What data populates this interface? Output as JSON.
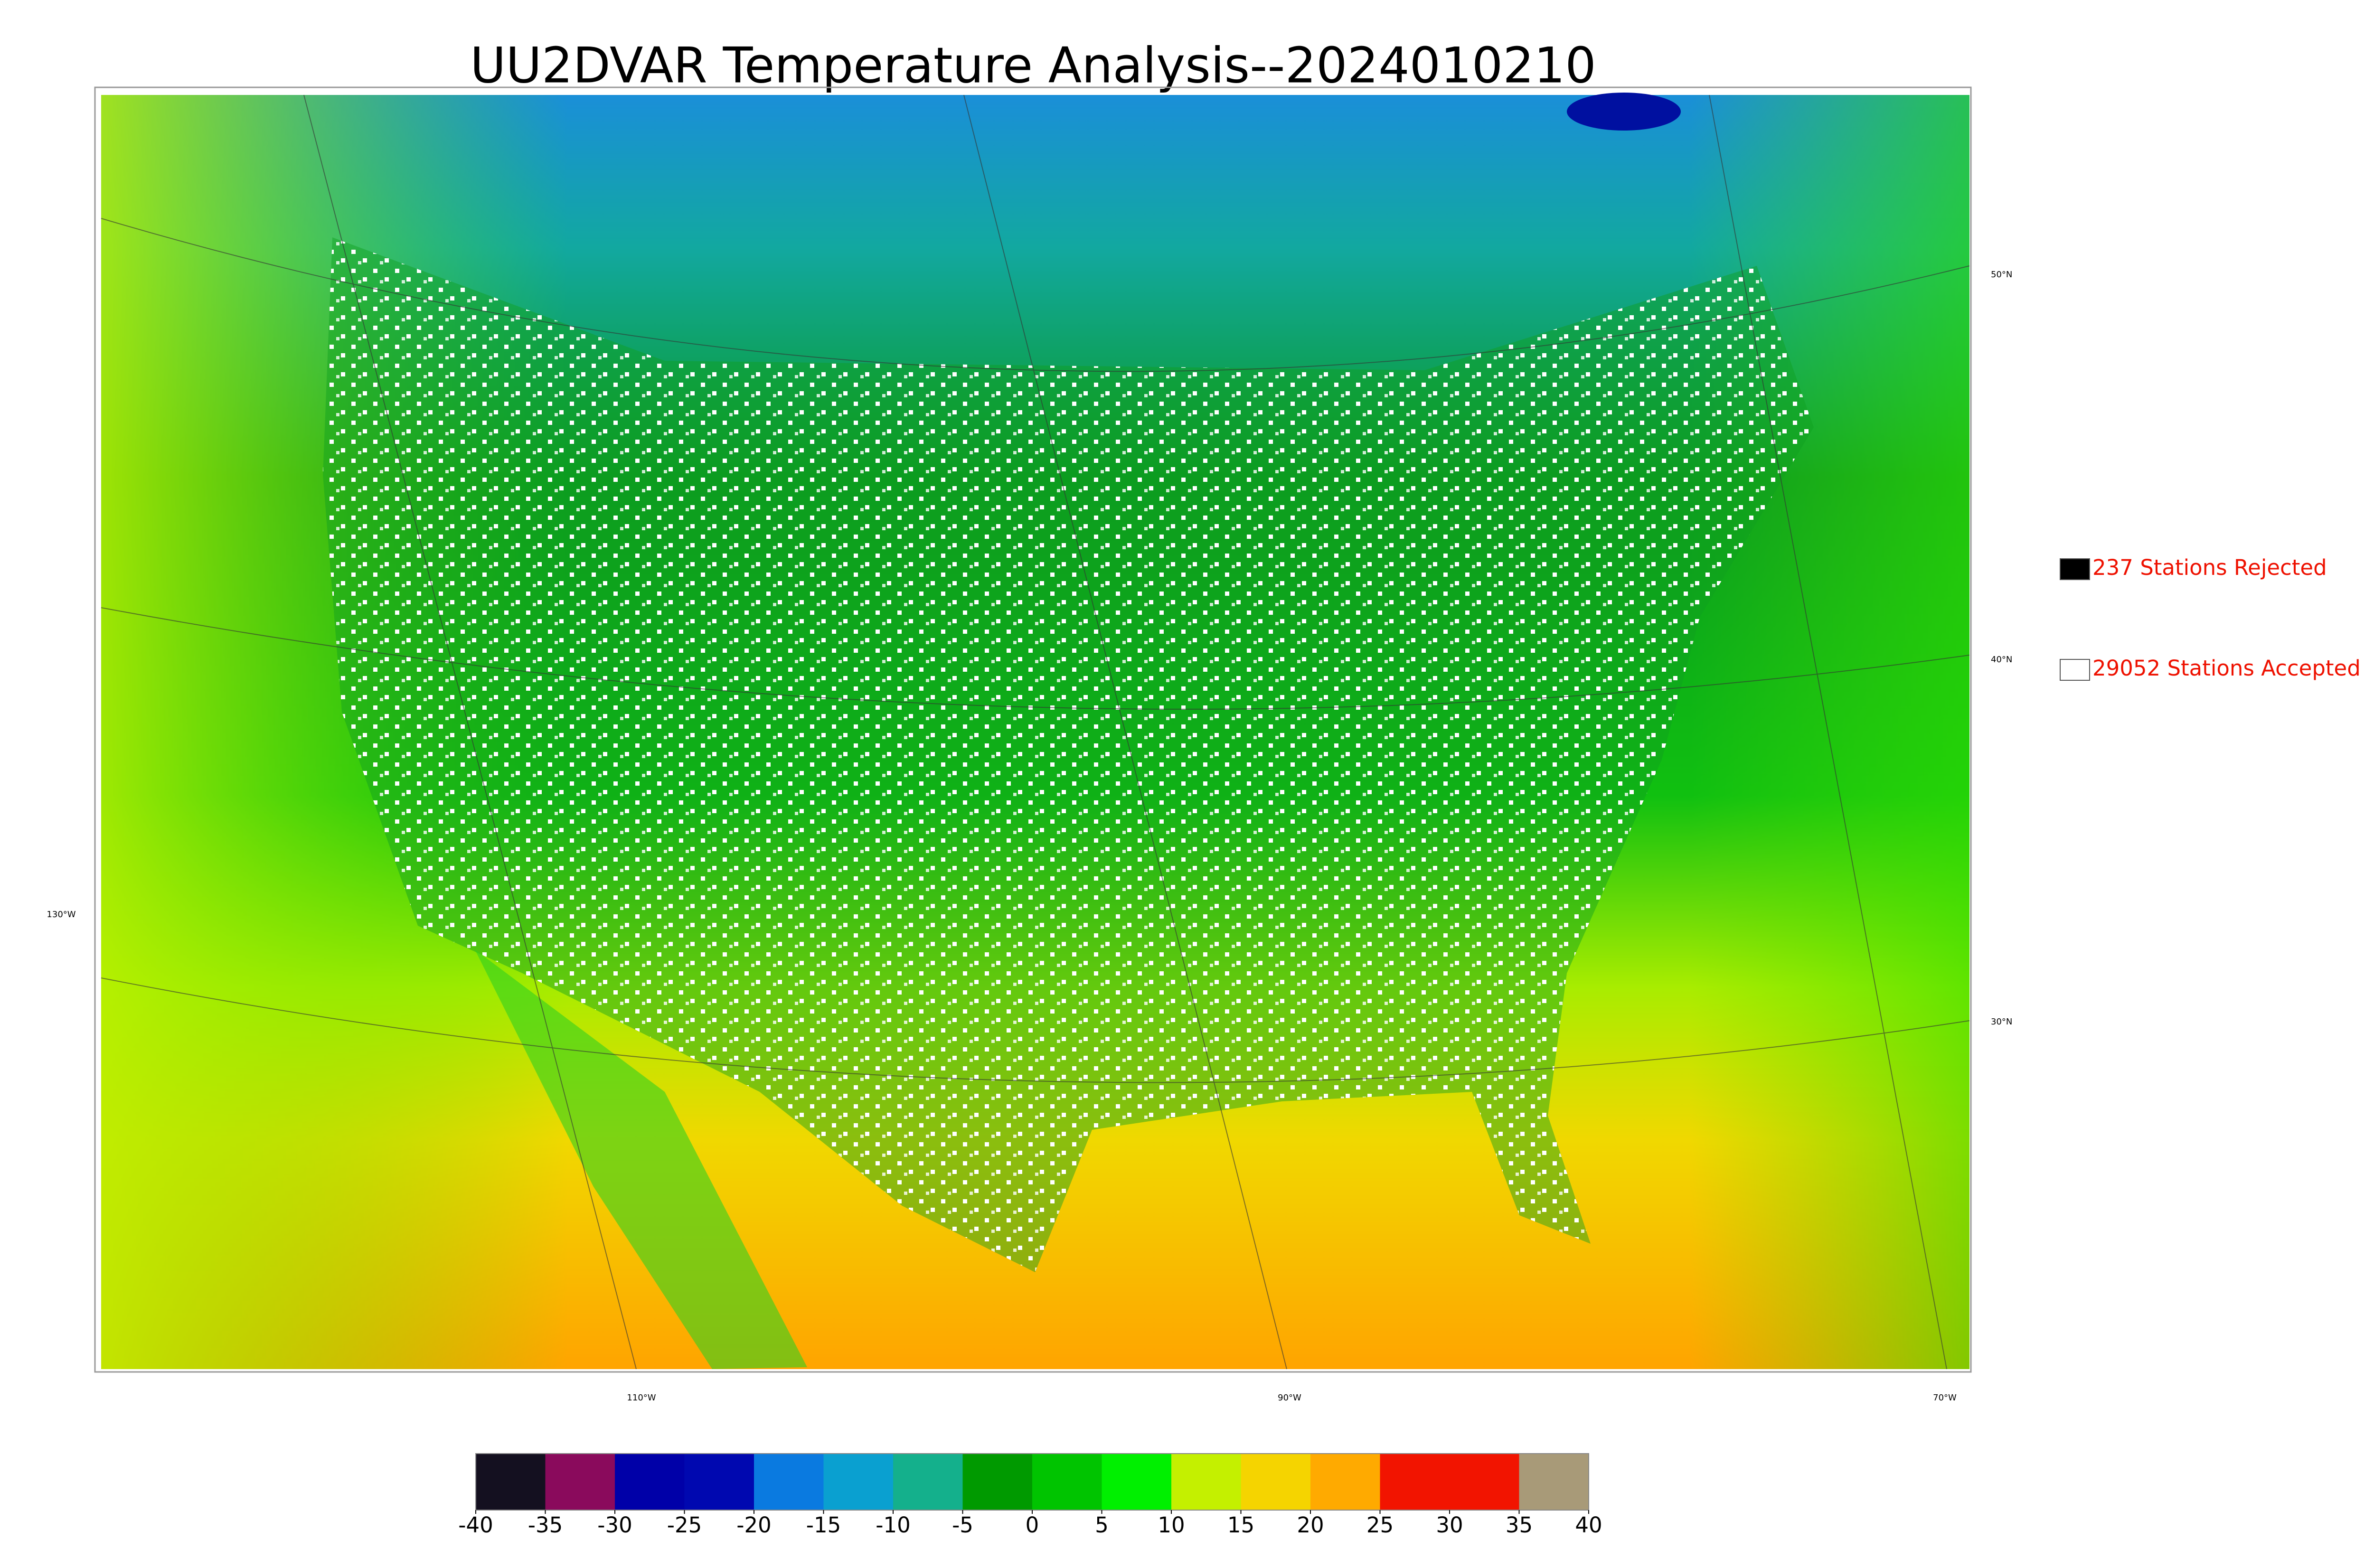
{
  "title": "UU2DVAR Temperature Analysis--2024010210",
  "map": {
    "lat_labels": [
      "50°N",
      "40°N",
      "30°N"
    ],
    "lon_labels": [
      "130°W",
      "110°W",
      "90°W",
      "70°W"
    ]
  },
  "legend": {
    "items": [
      {
        "label": "237 Stations Rejected",
        "color": "#000000"
      },
      {
        "label": "29052 Stations Accepted",
        "color": "#ffffff"
      }
    ],
    "text_color": "#ee1100"
  },
  "colorbar": {
    "lim": [
      -40,
      40
    ],
    "ticks": [
      -40,
      -35,
      -30,
      -25,
      -20,
      -15,
      -10,
      -5,
      0,
      5,
      10,
      15,
      20,
      25,
      30,
      35,
      40
    ],
    "colors": [
      "#141020",
      "#8a0a5c",
      "#0000a8",
      "#0008b0",
      "#0a7ae0",
      "#0aa0d0",
      "#14b08c",
      "#009a00",
      "#00c400",
      "#00f000",
      "#c4f000",
      "#f5d400",
      "#ffaa00",
      "#f21400",
      "#f21400",
      "#a89a78"
    ]
  }
}
